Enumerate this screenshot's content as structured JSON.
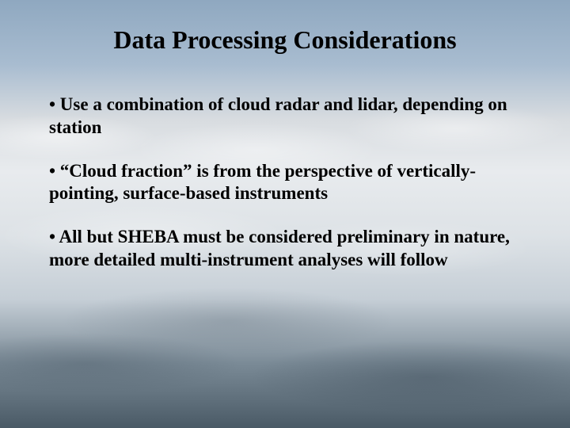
{
  "slide": {
    "title": "Data Processing Considerations",
    "title_fontsize": 32,
    "title_color": "#000000",
    "bullets": [
      "• Use a combination of cloud radar and lidar, depending on station",
      "• “Cloud fraction” is from the perspective of vertically-pointing, surface-based instruments",
      "• All but SHEBA must be considered preliminary in nature, more detailed multi-instrument analyses will follow"
    ],
    "bullet_fontsize": 23,
    "bullet_color": "#000000",
    "background": {
      "sky_top": "#8fa8c0",
      "cloud_light": "#e8ebee",
      "cloud_shadow": "#4a5a66"
    }
  }
}
